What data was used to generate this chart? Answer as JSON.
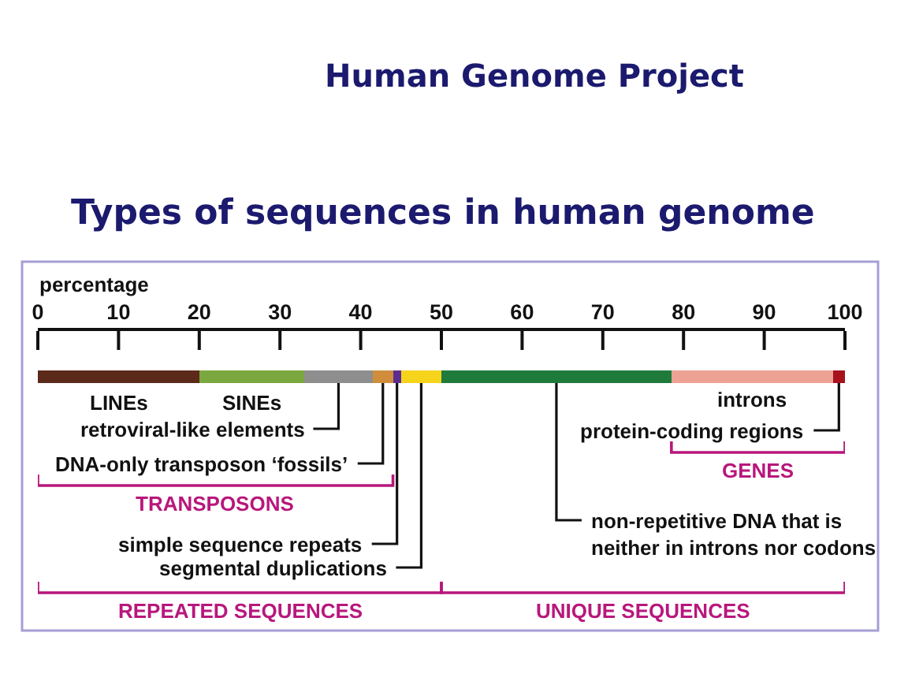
{
  "chart_data": {
    "type": "bar",
    "orientation": "horizontal",
    "stacked": true,
    "title": "Human Genome Project",
    "subtitle": "Types of sequences in human genome",
    "xlabel": "percentage",
    "categories": [
      null
    ],
    "xlim": [
      0,
      100
    ],
    "xticks": [
      0,
      10,
      20,
      30,
      40,
      50,
      60,
      70,
      80,
      90,
      100
    ],
    "tick_labels": "x",
    "series": [
      {
        "name": "LINEs",
        "color": "#5c2a1a",
        "values": [
          20
        ]
      },
      {
        "name": "SINEs",
        "color": "#7ba83e",
        "values": [
          13
        ]
      },
      {
        "name": "retroviral-like elements",
        "color": "#8e8e8e",
        "values": [
          8.5
        ]
      },
      {
        "name": "DNA-only transposon ‘fossils’",
        "color": "#d08d3c",
        "values": [
          2.5
        ]
      },
      {
        "name": "simple sequence repeats",
        "color": "#5c2d91",
        "values": [
          1
        ]
      },
      {
        "name": "segmental duplications",
        "color": "#f6d41c",
        "values": [
          5
        ]
      },
      {
        "name": "non-repetitive DNA that is neither in introns nor codons",
        "color": "#1e7b3c",
        "values": [
          28.5
        ]
      },
      {
        "name": "introns",
        "color": "#eda293",
        "values": [
          20
        ]
      },
      {
        "name": "protein-coding regions",
        "color": "#a8121c",
        "values": [
          1.5
        ]
      }
    ],
    "annotations": [
      "TRANSPOSONS",
      "GENES",
      "REPEATED SEQUENCES",
      "UNIQUE SEQUENCES"
    ]
  }
}
